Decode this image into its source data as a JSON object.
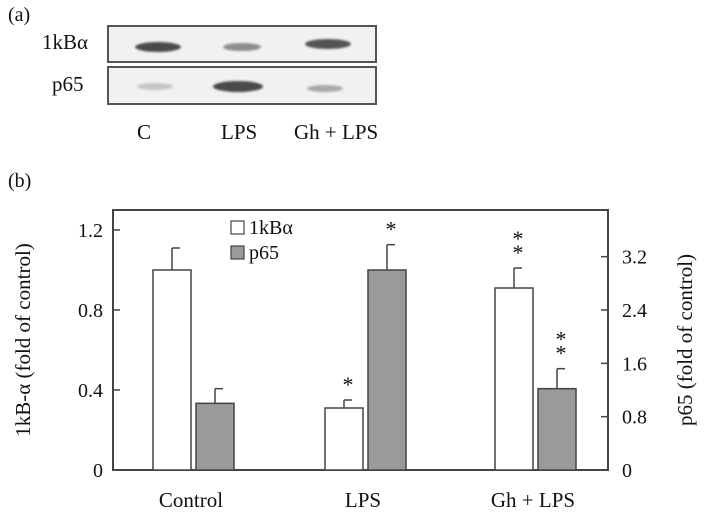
{
  "panel_a": {
    "label": "(a)",
    "rows": [
      {
        "label": "1kBα",
        "bands": [
          0.85,
          0.5,
          0.8
        ]
      },
      {
        "label": "p65",
        "bands": [
          0.2,
          0.85,
          0.35
        ]
      }
    ],
    "lanes": [
      "C",
      "LPS",
      "Gh + LPS"
    ]
  },
  "panel_b_label": "(b)",
  "chart_data": {
    "type": "bar",
    "categories": [
      "Control",
      "LPS",
      "Gh + LPS"
    ],
    "series": [
      {
        "name": "1kBα",
        "axis": "left",
        "color": "#ffffff",
        "values": [
          1.0,
          0.31,
          0.91
        ],
        "errors": [
          0.11,
          0.04,
          0.1
        ],
        "marks": [
          "",
          "*",
          "**"
        ]
      },
      {
        "name": "p65",
        "axis": "right",
        "color": "#9a9a9a",
        "values": [
          1.0,
          3.0,
          1.22
        ],
        "errors": [
          0.22,
          0.38,
          0.3
        ],
        "marks": [
          "",
          "*",
          "**"
        ]
      }
    ],
    "ylabel_left": "1kB-α (fold of control)",
    "ylabel_right": "p65 (fold of control)",
    "ylim_left": [
      0,
      1.3
    ],
    "ylim_right": [
      0,
      3.9
    ],
    "yticks_left": [
      "0",
      "0.4",
      "0.8",
      "1.2"
    ],
    "yticks_right": [
      "0",
      "0.8",
      "1.6",
      "2.4",
      "3.2"
    ],
    "legend_position": "top-left"
  }
}
